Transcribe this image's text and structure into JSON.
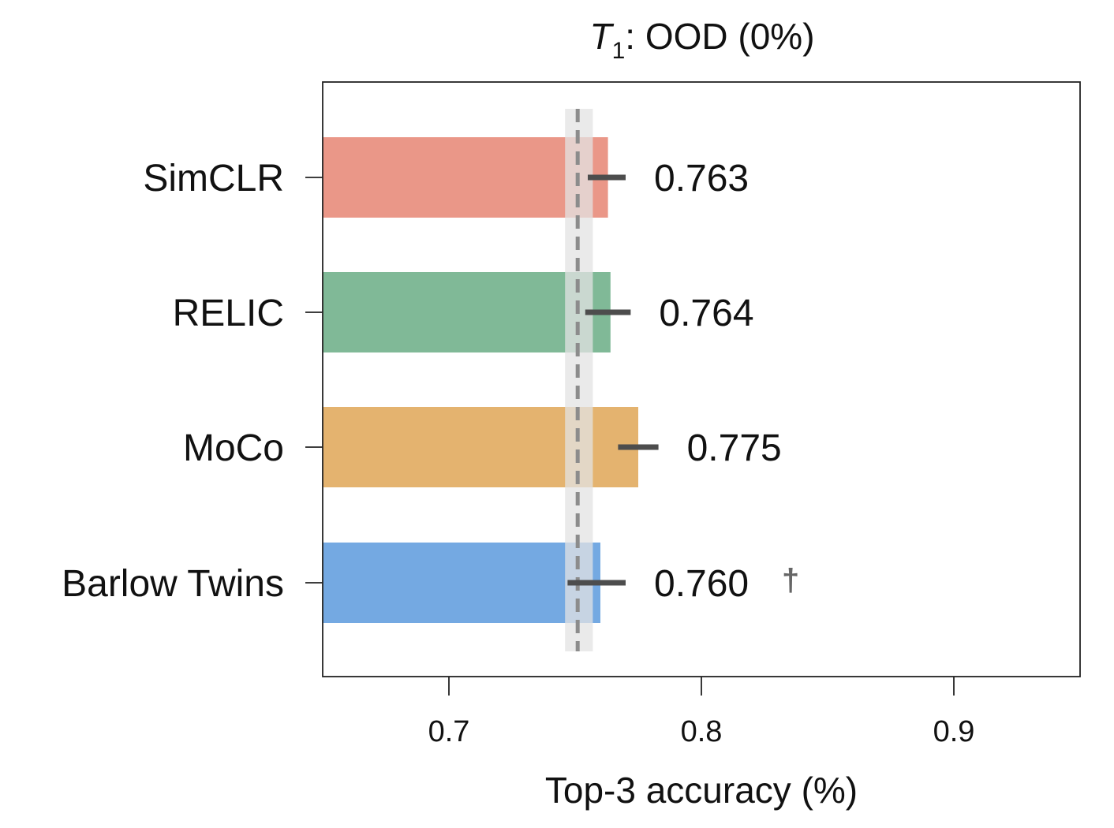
{
  "chart_data": {
    "type": "bar",
    "orientation": "horizontal",
    "title": {
      "var": "T",
      "sub": "1",
      "rest": ": OOD (0%)"
    },
    "xlabel": "Top-3 accuracy (%)",
    "ylabel": "",
    "xlim": [
      0.65,
      0.95
    ],
    "xticks": [
      0.7,
      0.8,
      0.9
    ],
    "xtick_labels": [
      "0.7",
      "0.8",
      "0.9"
    ],
    "grid": false,
    "categories": [
      "SimCLR",
      "RELIC",
      "MoCo",
      "Barlow Twins"
    ],
    "values": [
      0.763,
      0.764,
      0.775,
      0.76
    ],
    "error_low": [
      0.755,
      0.754,
      0.767,
      0.747
    ],
    "error_high": [
      0.77,
      0.772,
      0.783,
      0.77
    ],
    "value_labels": [
      "0.763",
      "0.764",
      "0.775",
      "0.760"
    ],
    "annotations": [
      "",
      "",
      "",
      "†"
    ],
    "colors": [
      "#ea9788",
      "#80b997",
      "#e4b36f",
      "#74a9e2"
    ],
    "baseline": {
      "value": 0.751,
      "band": [
        0.746,
        0.757
      ],
      "line_color": "#8c8c8c",
      "band_color": "#e3e3e3"
    },
    "error_color": "#4d4d4d"
  }
}
